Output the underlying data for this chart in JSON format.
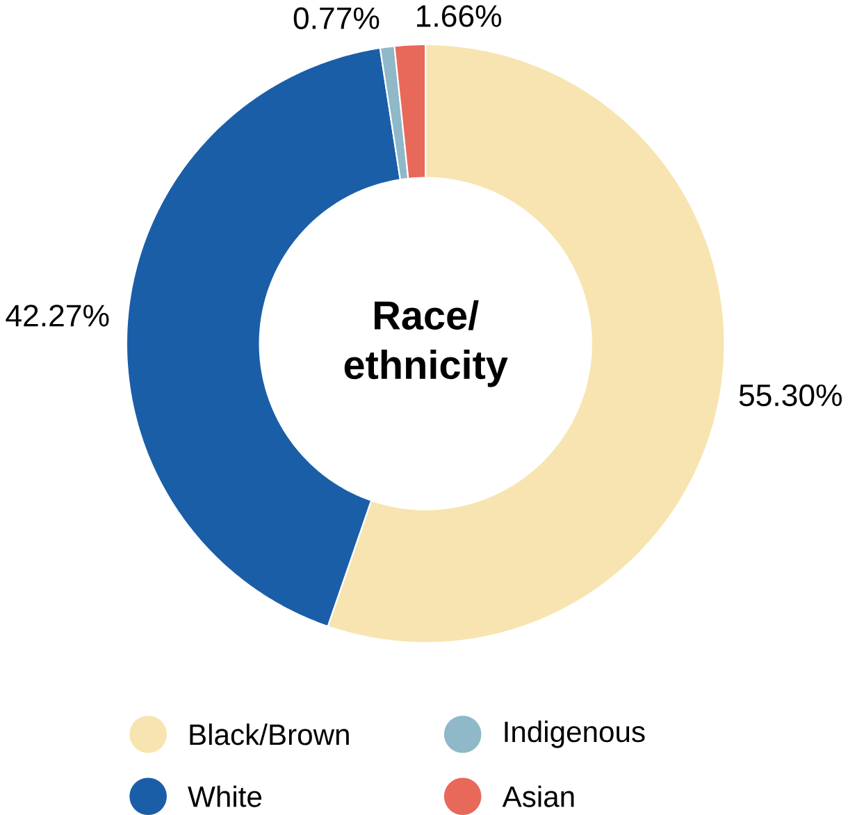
{
  "chart_data": {
    "type": "donut",
    "title": "Race/ ethnicity",
    "categories": [
      "Black/Brown",
      "White",
      "Indigenous",
      "Asian"
    ],
    "values": [
      55.3,
      42.27,
      0.77,
      1.66
    ],
    "value_labels": [
      "55.30%",
      "42.27%",
      "0.77%",
      "1.66%"
    ],
    "colors": [
      "#f8e4b0",
      "#1a5ea8",
      "#8fb8c8",
      "#e8685a"
    ],
    "legend": "bottom"
  }
}
